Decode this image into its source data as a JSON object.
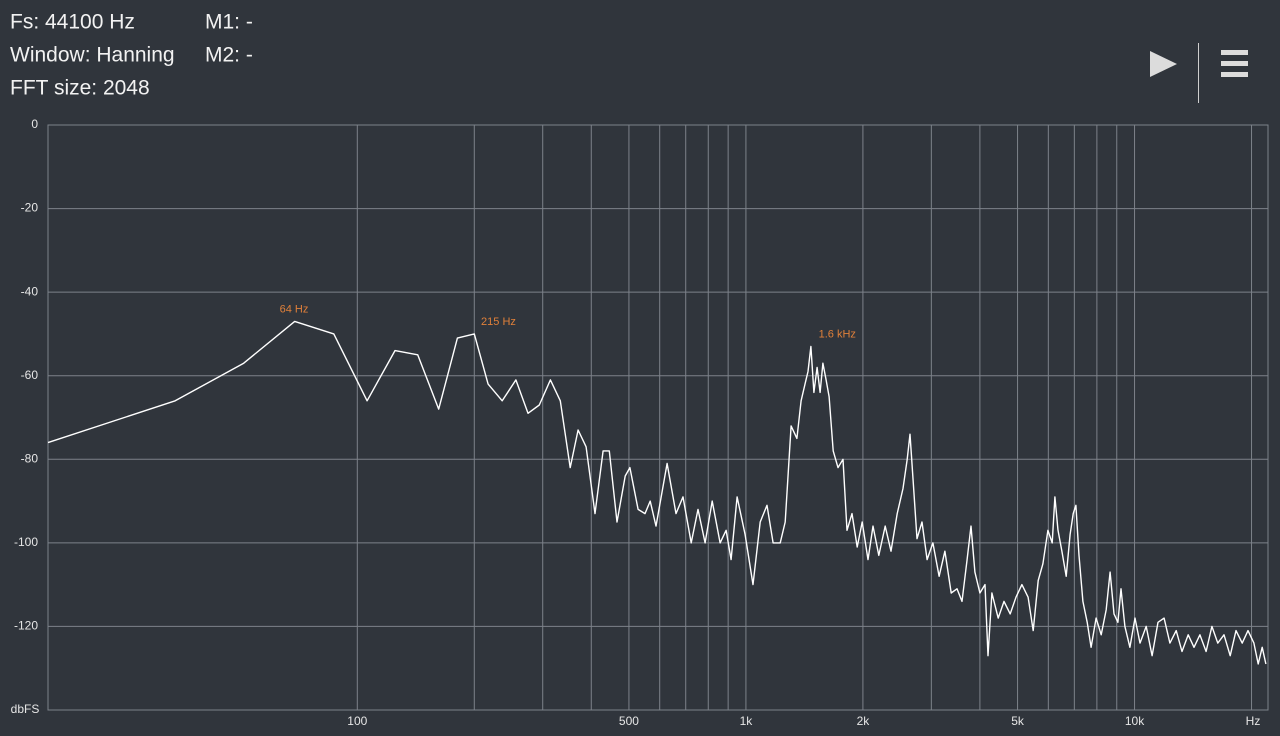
{
  "header": {
    "fs": "Fs: 44100 Hz",
    "window": "Window: Hanning",
    "fft_size": "FFT size: 2048",
    "m1": "M1: -",
    "m2": "M2: -"
  },
  "chart_data": {
    "type": "line",
    "xscale": "log",
    "xlabel": "Hz",
    "ylabel": "dbFS",
    "color": "#ffffff",
    "grid": true,
    "xlim": [
      16,
      22050
    ],
    "ylim": [
      -140,
      0
    ],
    "yticks": [
      0,
      -20,
      -40,
      -60,
      -80,
      -100,
      -120
    ],
    "xticks": [
      100,
      {
        "value": 200,
        "label": null
      },
      {
        "value": 300,
        "label": null
      },
      {
        "value": 400,
        "label": null
      },
      500,
      {
        "value": 600,
        "label": null
      },
      {
        "value": 700,
        "label": null
      },
      {
        "value": 800,
        "label": null
      },
      {
        "value": 900,
        "label": null
      },
      {
        "value": 1000,
        "label": "1k"
      },
      {
        "value": 2000,
        "label": "2k"
      },
      {
        "value": 3000,
        "label": null
      },
      {
        "value": 4000,
        "label": null
      },
      {
        "value": 5000,
        "label": "5k"
      },
      {
        "value": 6000,
        "label": null
      },
      {
        "value": 7000,
        "label": null
      },
      {
        "value": 8000,
        "label": null
      },
      {
        "value": 9000,
        "label": null
      },
      {
        "value": 10000,
        "label": "10k"
      },
      {
        "value": 20000,
        "label": null
      }
    ],
    "annotations": [
      {
        "x": 64,
        "y": -47,
        "text": "64 Hz"
      },
      {
        "x": 215,
        "y": -50,
        "text": "215 Hz"
      },
      {
        "x": 1600,
        "y": -53,
        "text": "1.6  kHz"
      }
    ],
    "annotation_color": "#e0803a",
    "x": [
      16,
      34,
      51,
      69,
      87,
      106,
      125,
      143,
      162,
      181,
      200,
      217,
      236,
      256,
      275,
      294,
      314,
      333,
      353,
      370,
      388,
      409,
      429,
      445,
      466,
      489,
      503,
      528,
      550,
      567,
      587,
      627,
      661,
      689,
      723,
      753,
      785,
      819,
      858,
      889,
      916,
      949,
      995,
      1043,
      1088,
      1133,
      1175,
      1225,
      1262,
      1307,
      1353,
      1387,
      1419,
      1445,
      1470,
      1496,
      1525,
      1552,
      1578,
      1608,
      1637,
      1677,
      1726,
      1778,
      1820,
      1875,
      1933,
      1992,
      2061,
      2123,
      2198,
      2282,
      2362,
      2450,
      2536,
      2600,
      2643,
      2693,
      2755,
      2838,
      2925,
      3027,
      3141,
      3251,
      3374,
      3493,
      3598,
      3707,
      3794,
      3883,
      4000,
      4122,
      4198,
      4296,
      4458,
      4614,
      4787,
      4955,
      5130,
      5323,
      5485,
      5651,
      5810,
      5986,
      6139,
      6238,
      6355,
      6502,
      6670,
      6826,
      6952,
      7066,
      7197,
      7365,
      7554,
      7730,
      7965,
      8206,
      8454,
      8653,
      8854,
      9061,
      9229,
      9443,
      9730,
      10026,
      10331,
      10718,
      11094,
      11488,
      11915,
      12334,
      12797,
      13246,
      13744,
      14227,
      14726,
      15280,
      15816,
      16373,
      16987,
      17626,
      18245,
      18928,
      19590,
      20282,
      20803,
      21302,
      21782
    ],
    "values": [
      -76,
      -66,
      -57,
      -47,
      -50,
      -66,
      -54,
      -55,
      -68,
      -51,
      -50,
      -62,
      -66,
      -61,
      -69,
      -67,
      -61,
      -66,
      -82,
      -73,
      -77,
      -93,
      -78,
      -78,
      -95,
      -84,
      -82,
      -92,
      -93,
      -90,
      -96,
      -81,
      -93,
      -89,
      -100,
      -92,
      -100,
      -90,
      -100,
      -97,
      -104,
      -89,
      -98,
      -110,
      -95,
      -91,
      -100,
      -100,
      -95,
      -72,
      -75,
      -66,
      -62,
      -59,
      -53,
      -64,
      -58,
      -64,
      -57,
      -61,
      -65,
      -78,
      -82,
      -80,
      -97,
      -93,
      -101,
      -95,
      -104,
      -96,
      -103,
      -96,
      -102,
      -93,
      -87,
      -80,
      -74,
      -85,
      -99,
      -95,
      -104,
      -100,
      -108,
      -102,
      -112,
      -111,
      -114,
      -104,
      -96,
      -107,
      -112,
      -110,
      -127,
      -112,
      -118,
      -114,
      -117,
      -113,
      -110,
      -113,
      -121,
      -109,
      -105,
      -97,
      -100,
      -89,
      -97,
      -102,
      -108,
      -98,
      -93,
      -91,
      -103,
      -114,
      -119,
      -125,
      -118,
      -122,
      -116,
      -107,
      -117,
      -119,
      -111,
      -120,
      -125,
      -118,
      -124,
      -120,
      -127,
      -119,
      -118,
      -124,
      -121,
      -126,
      -122,
      -125,
      -122,
      -126,
      -120,
      -124,
      -122,
      -127,
      -121,
      -124,
      -121,
      -124,
      -129,
      -125,
      -129
    ]
  }
}
